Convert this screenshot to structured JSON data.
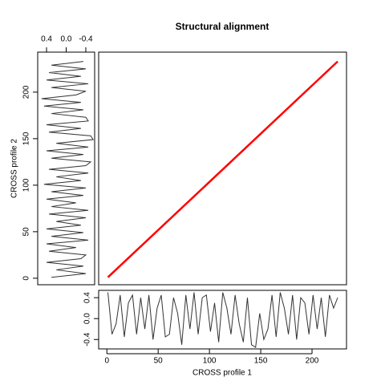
{
  "chart_data": [
    {
      "type": "line",
      "title": "Structural alignment",
      "x": [
        1,
        225
      ],
      "values": [
        1,
        233
      ],
      "color": "#ff0000",
      "xlim": [
        -8,
        233.6
      ],
      "ylim": [
        -7,
        243
      ]
    },
    {
      "type": "line",
      "xlabel": "CROSS profile 1",
      "color": "#333333",
      "x": [
        1,
        5,
        9,
        13,
        17,
        21,
        25,
        29,
        33,
        37,
        41,
        45,
        49,
        53,
        57,
        61,
        65,
        69,
        73,
        77,
        81,
        85,
        89,
        93,
        97,
        101,
        105,
        109,
        113,
        117,
        121,
        125,
        129,
        133,
        137,
        141,
        145,
        149,
        153,
        157,
        161,
        165,
        169,
        173,
        177,
        181,
        185,
        189,
        193,
        197,
        201,
        205,
        209,
        213,
        217,
        221,
        225
      ],
      "values": [
        0.5,
        -0.3,
        -0.1,
        0.45,
        -0.35,
        0.3,
        0.45,
        -0.3,
        0.4,
        -0.2,
        0.45,
        -0.4,
        0.2,
        0.45,
        -0.35,
        -0.3,
        0.4,
        0.1,
        -0.5,
        0.45,
        -0.2,
        0.5,
        -0.3,
        0.4,
        0.45,
        -0.25,
        0.3,
        -0.45,
        0.5,
        0.2,
        -0.3,
        0.45,
        -0.1,
        -0.45,
        0.4,
        -0.5,
        -0.55,
        0.1,
        -0.4,
        -0.2,
        0.45,
        -0.35,
        0.5,
        0.2,
        -0.3,
        0.45,
        -0.4,
        0.4,
        0.3,
        -0.3,
        0.45,
        -0.2,
        0.4,
        -0.35,
        0.45,
        0.2,
        0.4
      ],
      "xlim": [
        -8,
        233.6
      ],
      "ylim": [
        -0.58,
        0.54
      ],
      "xticks": [
        0,
        50,
        100,
        150,
        200
      ],
      "yticks": [
        0.4,
        {
          "value": 0,
          "label": "0.0"
        },
        -0.4
      ]
    },
    {
      "type": "line",
      "ylabel": "CROSS profile 2",
      "color": "#333333",
      "swap_axes": true,
      "x": [
        1,
        5,
        9,
        13,
        17,
        21,
        25,
        29,
        33,
        37,
        41,
        45,
        49,
        53,
        57,
        61,
        65,
        69,
        73,
        77,
        81,
        85,
        89,
        93,
        97,
        101,
        105,
        109,
        113,
        117,
        121,
        125,
        129,
        133,
        137,
        141,
        145,
        149,
        153,
        157,
        161,
        165,
        169,
        173,
        177,
        181,
        185,
        189,
        193,
        197,
        201,
        205,
        209,
        213,
        217,
        221,
        225,
        229,
        233
      ],
      "values": [
        0.3,
        -0.4,
        0.2,
        -0.35,
        0.4,
        -0.3,
        -0.4,
        0.35,
        -0.2,
        0.4,
        -0.45,
        0.3,
        -0.35,
        0.4,
        -0.3,
        0.2,
        -0.4,
        0.35,
        -0.45,
        0.3,
        -0.2,
        0.4,
        -0.35,
        0.3,
        -0.4,
        0.45,
        -0.3,
        0.2,
        -0.45,
        0.35,
        -0.4,
        -0.5,
        0.3,
        -0.35,
        0.4,
        -0.45,
        0.2,
        -0.55,
        -0.5,
        0.35,
        -0.3,
        0.4,
        -0.45,
        -0.4,
        0.3,
        -0.35,
        0.45,
        -0.3,
        0.5,
        -0.2,
        -0.4,
        0.3,
        -0.45,
        0.4,
        -0.3,
        0.35,
        -0.4,
        0.3,
        -0.35
      ],
      "xlim": [
        -7,
        243
      ],
      "ylim": [
        0.58,
        -0.58
      ],
      "xticks": [
        0,
        50,
        100,
        150,
        200
      ],
      "yticks": [
        0.4,
        {
          "value": 0,
          "label": "0.0"
        },
        -0.4
      ]
    }
  ]
}
